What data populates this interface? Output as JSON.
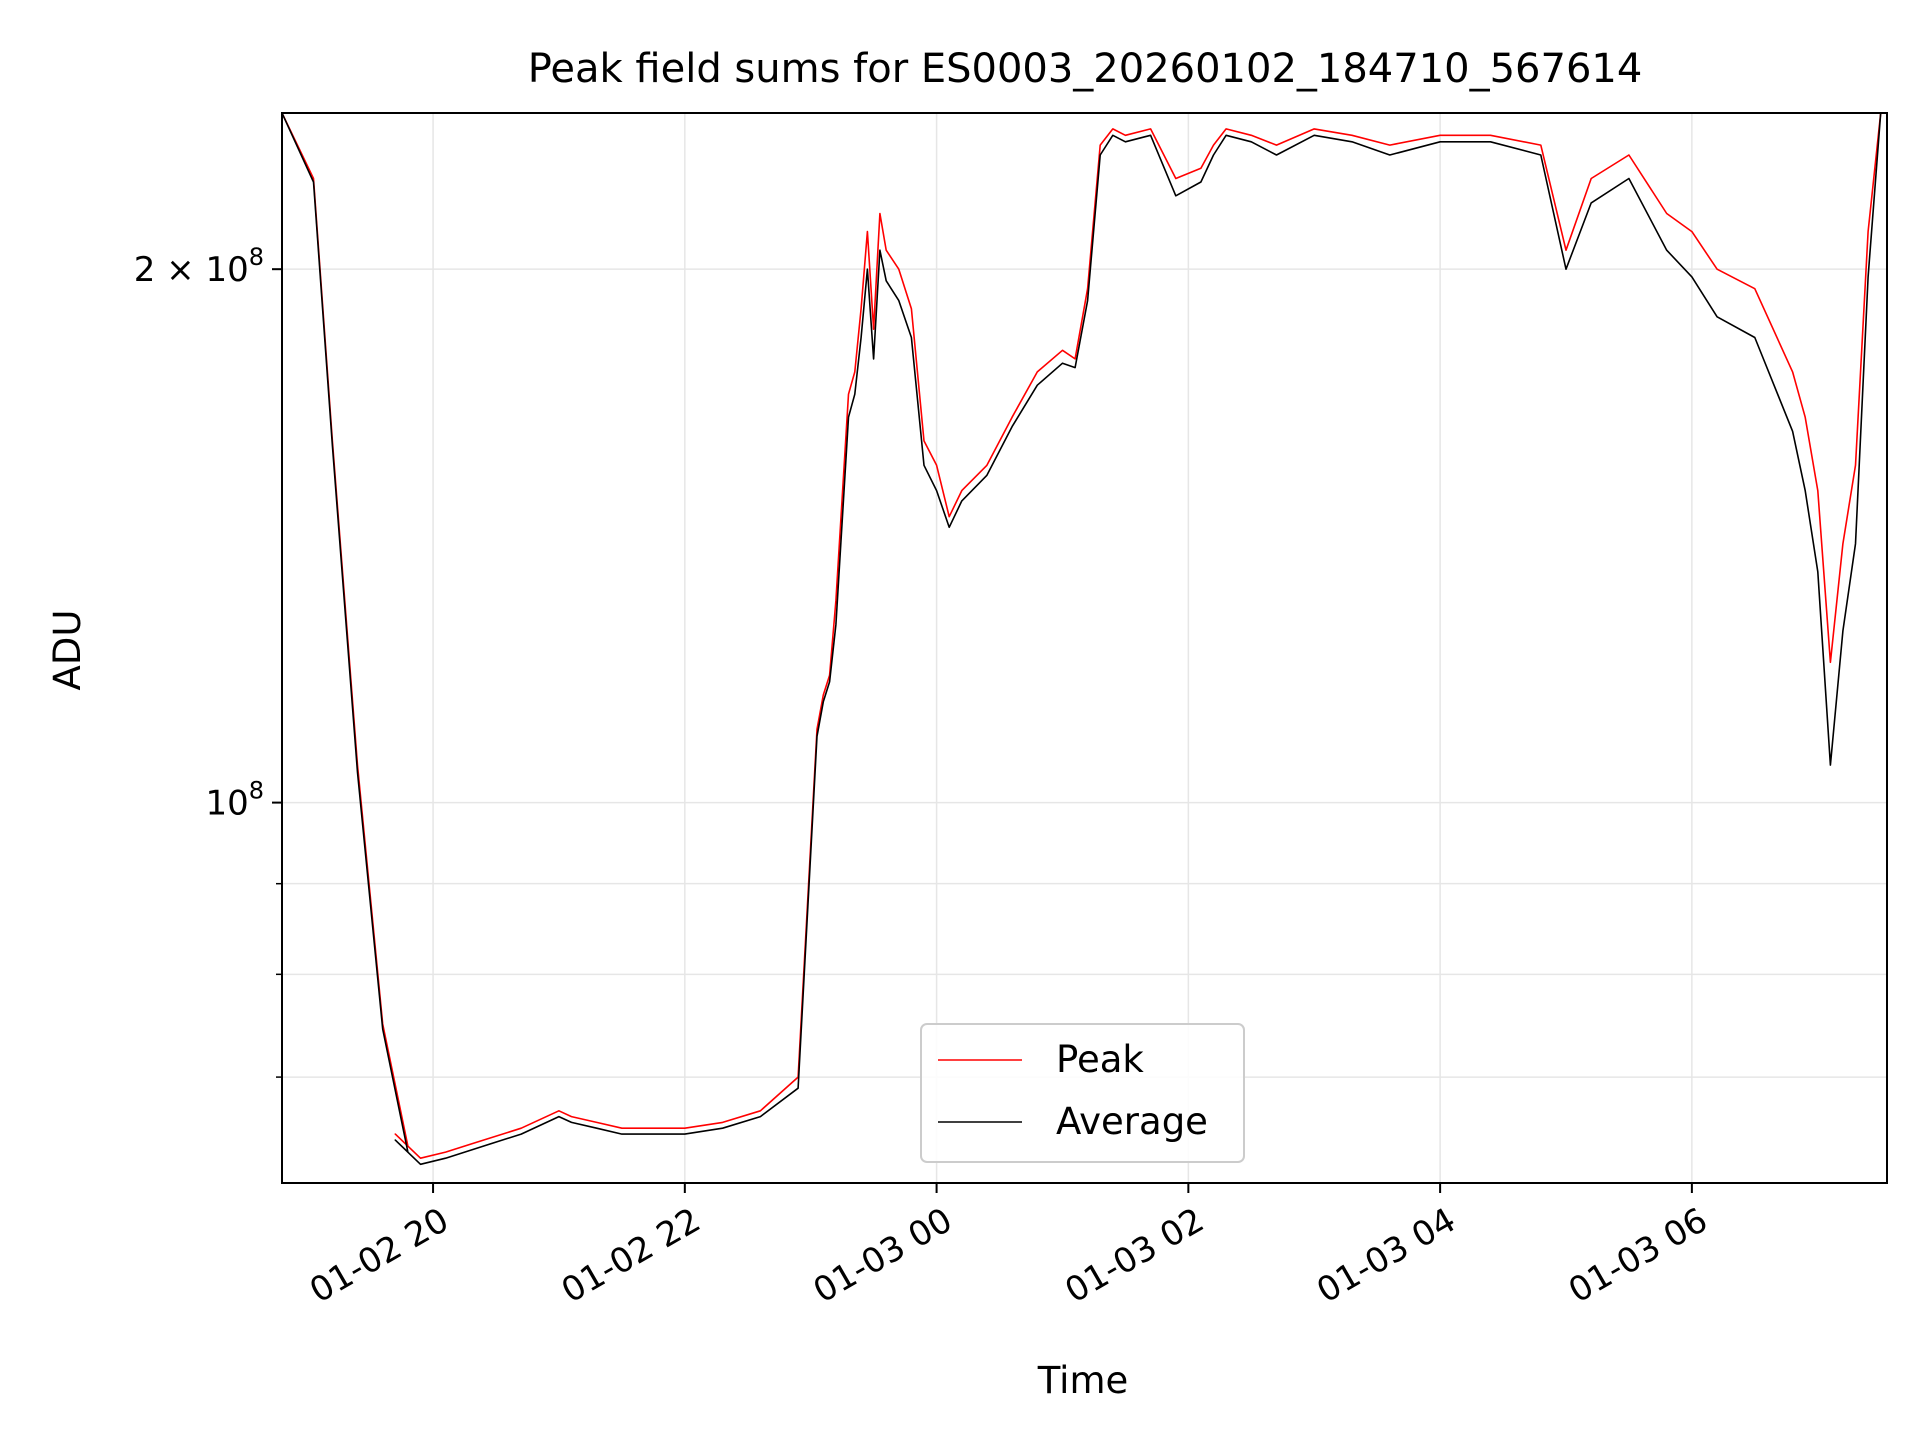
{
  "chart_data": {
    "type": "line",
    "title": "Peak field sums for ES0003_20260102_184710_567614",
    "xlabel": "Time",
    "ylabel": "ADU",
    "yscale": "log",
    "ylim": [
      61000000,
      245000000
    ],
    "xlim_hours": [
      -1.2,
      11.55
    ],
    "x_unit": "hours since 2026-01-02 20:00",
    "grid": true,
    "legend_loc": "lower center",
    "x_ticks": [
      {
        "hour": 0,
        "label": "01-02 20"
      },
      {
        "hour": 2,
        "label": "01-02 22"
      },
      {
        "hour": 4,
        "label": "01-03 00"
      },
      {
        "hour": 6,
        "label": "01-03 02"
      },
      {
        "hour": 8,
        "label": "01-03 04"
      },
      {
        "hour": 10,
        "label": "01-03 06"
      }
    ],
    "y_ticks": [
      {
        "value": 200000000,
        "base": "2 × 10",
        "exp": "8"
      },
      {
        "value": 100000000,
        "base": "10",
        "exp": "8"
      }
    ],
    "y_minor_ticks": [
      60000000,
      70000000,
      80000000,
      90000000
    ],
    "series": [
      {
        "name": "Peak",
        "color": "#ff0000",
        "x": [
          -1.2,
          -0.95,
          -0.8,
          -0.6,
          -0.4,
          -0.2,
          -0.3,
          -0.1,
          0.1,
          0.4,
          0.7,
          1.0,
          1.1,
          1.3,
          1.5,
          1.7,
          2.0,
          2.3,
          2.6,
          2.9,
          3.05,
          3.1,
          3.15,
          3.2,
          3.3,
          3.35,
          3.4,
          3.45,
          3.5,
          3.55,
          3.6,
          3.7,
          3.8,
          3.9,
          4.0,
          4.1,
          4.2,
          4.4,
          4.6,
          4.8,
          5.0,
          5.1,
          5.2,
          5.3,
          5.4,
          5.5,
          5.7,
          5.9,
          6.1,
          6.2,
          6.3,
          6.5,
          6.7,
          7.0,
          7.3,
          7.6,
          8.0,
          8.4,
          8.8,
          9.0,
          9.2,
          9.5,
          9.8,
          10.0,
          10.2,
          10.5,
          10.8,
          10.9,
          11.0,
          11.1,
          11.2,
          11.3,
          11.4,
          11.5
        ],
        "y": [
          245000000,
          225000000,
          160000000,
          105000000,
          75000000,
          64000000,
          65000000,
          63000000,
          63500000,
          64500000,
          65500000,
          67000000,
          66500000,
          66000000,
          65500000,
          65500000,
          65500000,
          66000000,
          67000000,
          70000000,
          110000000,
          115000000,
          118000000,
          130000000,
          170000000,
          175000000,
          190000000,
          210000000,
          185000000,
          215000000,
          205000000,
          200000000,
          190000000,
          160000000,
          155000000,
          145000000,
          150000000,
          155000000,
          165000000,
          175000000,
          180000000,
          178000000,
          195000000,
          235000000,
          240000000,
          238000000,
          240000000,
          225000000,
          228000000,
          235000000,
          240000000,
          238000000,
          235000000,
          240000000,
          238000000,
          235000000,
          238000000,
          238000000,
          235000000,
          205000000,
          225000000,
          232000000,
          215000000,
          210000000,
          200000000,
          195000000,
          175000000,
          165000000,
          150000000,
          120000000,
          140000000,
          155000000,
          210000000,
          245000000
        ]
      },
      {
        "name": "Average",
        "color": "#000000",
        "x": [
          -1.2,
          -0.95,
          -0.8,
          -0.6,
          -0.4,
          -0.2,
          -0.3,
          -0.1,
          0.1,
          0.4,
          0.7,
          1.0,
          1.1,
          1.3,
          1.5,
          1.7,
          2.0,
          2.3,
          2.6,
          2.9,
          3.05,
          3.1,
          3.15,
          3.2,
          3.3,
          3.35,
          3.4,
          3.45,
          3.5,
          3.55,
          3.6,
          3.7,
          3.8,
          3.9,
          4.0,
          4.1,
          4.2,
          4.4,
          4.6,
          4.8,
          5.0,
          5.1,
          5.2,
          5.3,
          5.4,
          5.5,
          5.7,
          5.9,
          6.1,
          6.2,
          6.3,
          6.5,
          6.7,
          7.0,
          7.3,
          7.6,
          8.0,
          8.4,
          8.8,
          9.0,
          9.2,
          9.5,
          9.8,
          10.0,
          10.2,
          10.5,
          10.8,
          10.9,
          11.0,
          11.1,
          11.2,
          11.3,
          11.4,
          11.5
        ],
        "y": [
          245000000,
          224000000,
          159000000,
          104000000,
          74500000,
          63500000,
          64500000,
          62500000,
          63000000,
          64000000,
          65000000,
          66500000,
          66000000,
          65500000,
          65000000,
          65000000,
          65000000,
          65500000,
          66500000,
          69000000,
          109000000,
          114000000,
          117000000,
          126000000,
          165000000,
          170000000,
          183000000,
          200000000,
          178000000,
          205000000,
          197000000,
          192000000,
          183000000,
          155000000,
          150000000,
          143000000,
          148000000,
          153000000,
          163000000,
          172000000,
          177000000,
          176000000,
          192000000,
          232000000,
          238000000,
          236000000,
          238000000,
          220000000,
          224000000,
          232000000,
          238000000,
          236000000,
          232000000,
          238000000,
          236000000,
          232000000,
          236000000,
          236000000,
          232000000,
          200000000,
          218000000,
          225000000,
          205000000,
          198000000,
          188000000,
          183000000,
          162000000,
          150000000,
          135000000,
          105000000,
          125000000,
          140000000,
          198000000,
          245000000
        ]
      }
    ]
  }
}
